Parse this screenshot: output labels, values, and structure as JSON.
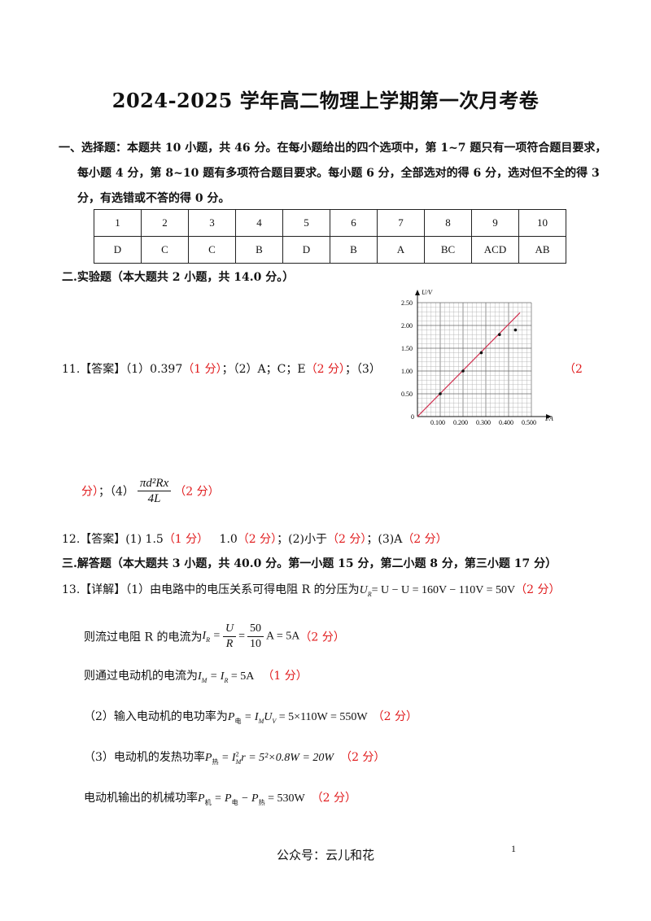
{
  "title": "2024-2025 学年高二物理上学期第一次月考卷",
  "section1": {
    "line1": "一、选择题：本题共 10 小题，共 46 分。在每小题给出的四个选项中，第 1~7 题只有一项符合题目要求，",
    "line2": "每小题 4 分，第 8~10 题有多项符合题目要求。每小题 6 分，全部选对的得 6 分，选对但不全的得 3",
    "line3": "分，有选错或不答的得 0 分。"
  },
  "answer_table": {
    "numbers": [
      "1",
      "2",
      "3",
      "4",
      "5",
      "6",
      "7",
      "8",
      "9",
      "10"
    ],
    "answers": [
      "D",
      "C",
      "C",
      "B",
      "D",
      "B",
      "A",
      "BC",
      "ACD",
      "AB"
    ]
  },
  "section2": {
    "heading": "二.实验题（本大题共 2 小题，共 14.0 分。）"
  },
  "q11": {
    "label": "11.【答案】（1）0.397",
    "p1": "（1 分）",
    "mid1": "；（2）A；C；E",
    "p2": "（2 分）",
    "mid2": "；（3）",
    "p3a": "（2",
    "p3b": "分）",
    "mid3": "；（4）",
    "formula_num": "πd²Rx",
    "formula_den": "4L",
    "p4": "（2 分）"
  },
  "graph": {
    "ylabel": "U/V",
    "xlabel": "I/A",
    "origin": "0",
    "yticks": [
      "0.50",
      "1.00",
      "1.50",
      "2.00",
      "2.50"
    ],
    "xticks": [
      "0.100",
      "0.200",
      "0.300",
      "0.400",
      "0.500"
    ],
    "points": [
      [
        0.1,
        0.5
      ],
      [
        0.2,
        1.0
      ],
      [
        0.28,
        1.4
      ],
      [
        0.36,
        1.8
      ],
      [
        0.43,
        1.9
      ]
    ],
    "line": [
      [
        0,
        0
      ],
      [
        0.45,
        2.28
      ]
    ],
    "line_color": "#d03050"
  },
  "q12": {
    "label": "12.【答案】(1) 1.5",
    "p1": "（1 分）",
    "mid1": "1.0",
    "p2": "（2 分）",
    "mid2": "；(2)小于",
    "p3": "（2 分）",
    "mid3": "；(3)A",
    "p4": "（2 分）"
  },
  "section3": {
    "heading": "三.解答题（本大题共 3 小题，共 40.0 分。第一小题 15 分，第二小题 8 分，第三小题 17 分）"
  },
  "q13": {
    "l1_text": "13.【详解】（1）由电路中的电压关系可得电阻 R 的分压为",
    "l1_eq": "= U − U = 160V − 110V = 50V",
    "l1_p": "（2 分）",
    "l2_text": "则流过电阻 R 的电流为",
    "l2_num_a": "U",
    "l2_den_a": "R",
    "l2_num_b": "50",
    "l2_den_b": "10",
    "l2_tail": "A = 5A",
    "l2_p": "（2 分）",
    "l3_text": "则通过电动机的电流为",
    "l3_eq": "= 5A",
    "l3_p": "（1 分）",
    "l4_text": "（2）输入电动机的电功率为",
    "l4_eq": "= 5×110W = 550W",
    "l4_p": "（2 分）",
    "l5_text": "（3）电动机的发热功率",
    "l5_eq": "r = 5²×0.8W = 20W",
    "l5_p": "（2 分）",
    "l6_text": "电动机输出的机械功率",
    "l6_eq": "= 530W",
    "l6_p": "（2 分）"
  },
  "footer": "公众号：云儿和花",
  "page_number": "1"
}
